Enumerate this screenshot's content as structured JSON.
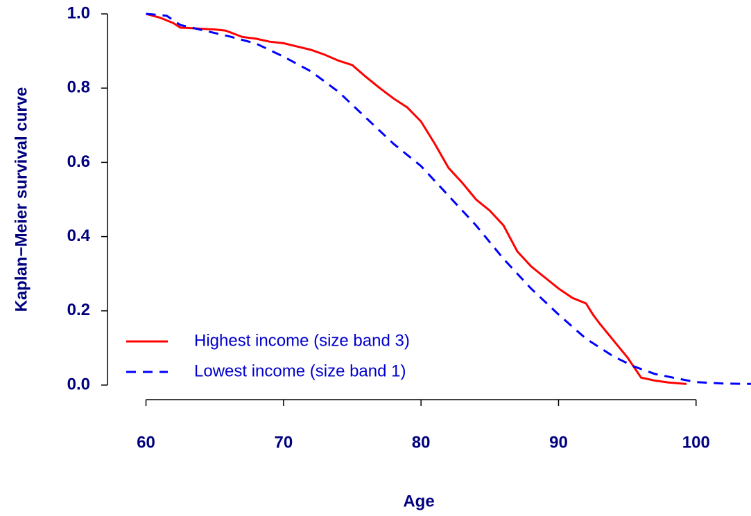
{
  "chart_data": {
    "type": "line",
    "xlabel": "Age",
    "ylabel": "Kaplan−Meier survival curve",
    "xlim": [
      57.2,
      104.6
    ],
    "ylim": [
      -0.04,
      1.04
    ],
    "xticks": [
      60,
      70,
      80,
      90,
      100
    ],
    "yticks": [
      {
        "value": 0,
        "label": "0.0"
      },
      {
        "value": 0.2,
        "label": "0.2"
      },
      {
        "value": 0.4,
        "label": "0.4"
      },
      {
        "value": 0.6,
        "label": "0.6"
      },
      {
        "value": 0.8,
        "label": "0.8"
      },
      {
        "value": 1,
        "label": "1.0"
      }
    ],
    "legend": "bottomleft",
    "series": [
      {
        "name": "Highest income (size band 3)",
        "color": "#ff0000",
        "dash": "solid",
        "x": [
          60,
          61,
          62,
          62.5,
          63,
          64,
          65,
          65.8,
          66.5,
          67,
          68,
          69,
          70,
          71,
          72,
          73,
          74,
          75,
          76,
          77,
          78,
          79,
          80,
          81,
          82,
          83,
          84,
          85,
          86,
          87,
          88,
          89,
          90,
          91,
          92,
          92.5,
          93,
          94,
          95,
          96,
          97,
          98,
          99.3
        ],
        "values": [
          1.0,
          0.99,
          0.975,
          0.963,
          0.962,
          0.96,
          0.958,
          0.955,
          0.945,
          0.938,
          0.933,
          0.925,
          0.921,
          0.912,
          0.903,
          0.89,
          0.874,
          0.862,
          0.83,
          0.8,
          0.772,
          0.748,
          0.71,
          0.65,
          0.585,
          0.545,
          0.5,
          0.47,
          0.43,
          0.36,
          0.32,
          0.29,
          0.26,
          0.235,
          0.22,
          0.19,
          0.165,
          0.12,
          0.075,
          0.02,
          0.012,
          0.007,
          0.003
        ]
      },
      {
        "name": "Lowest income (size band 1)",
        "color": "#0000ff",
        "dash": "dashed",
        "x": [
          60,
          61.5,
          62.5,
          64,
          66,
          68,
          70,
          72,
          74,
          76,
          78,
          80,
          82,
          84,
          86,
          88,
          90,
          92,
          94,
          95.5,
          97,
          99,
          100,
          102,
          104.4
        ],
        "values": [
          1.0,
          0.995,
          0.97,
          0.957,
          0.94,
          0.92,
          0.885,
          0.845,
          0.79,
          0.72,
          0.65,
          0.59,
          0.51,
          0.43,
          0.34,
          0.26,
          0.19,
          0.125,
          0.077,
          0.05,
          0.03,
          0.015,
          0.008,
          0.004,
          0.003
        ]
      }
    ]
  }
}
